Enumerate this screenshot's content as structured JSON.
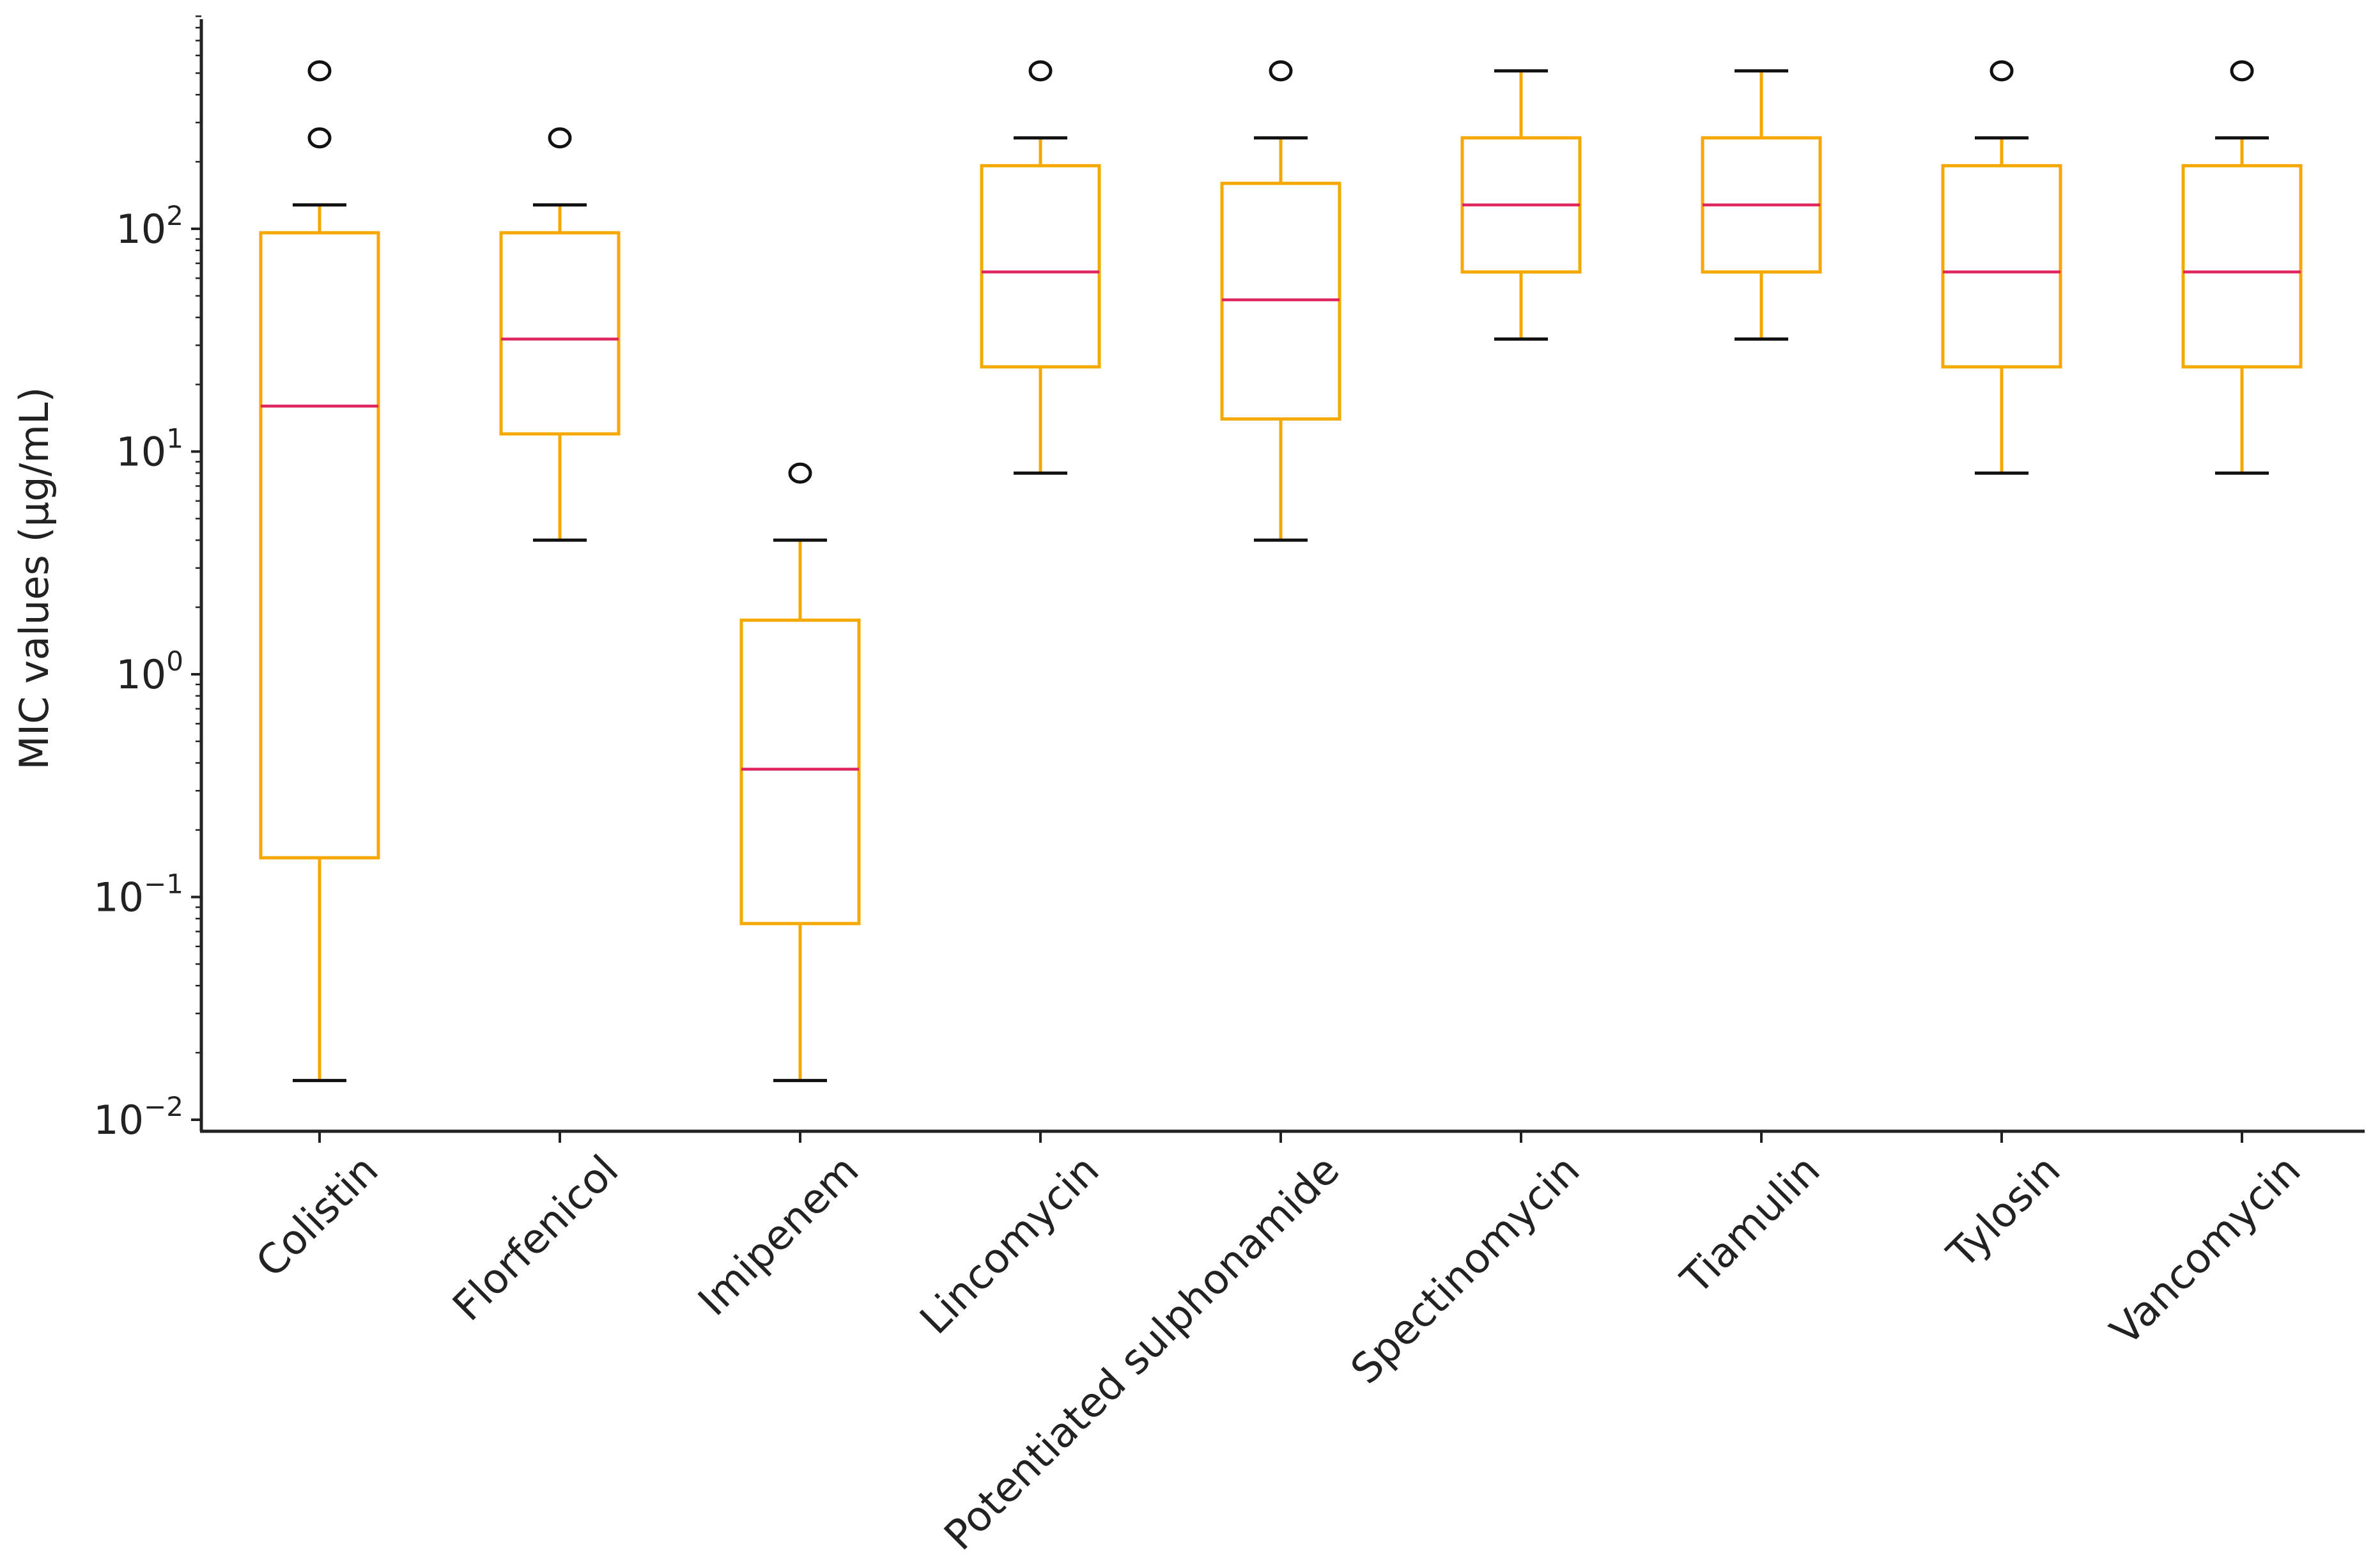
{
  "chart_data": {
    "type": "box",
    "title": "",
    "xlabel": "",
    "ylabel": "MIC values (μg/mL)",
    "yscale": "log",
    "ylim": [
      0.0078,
      900
    ],
    "y_ticks": [
      {
        "value": 100,
        "base": "10",
        "exp": "2"
      },
      {
        "value": 10,
        "base": "10",
        "exp": "1"
      },
      {
        "value": 1,
        "base": "10",
        "exp": "0"
      },
      {
        "value": 0.1,
        "base": "10",
        "exp": "−1"
      },
      {
        "value": 0.01,
        "base": "10",
        "exp": "−2"
      }
    ],
    "colors": {
      "box": "#F5A800",
      "whisker": "#F5A800",
      "cap": "#111111",
      "median": "#E0245E",
      "flier": "#111111",
      "axis": "#222222"
    },
    "series": [
      {
        "name": "Colistin",
        "whislo": 0.015,
        "q1": 0.15,
        "med": 16,
        "q3": 96,
        "whishi": 128,
        "fliers": [
          256,
          512
        ]
      },
      {
        "name": "Florfenicol",
        "whislo": 4,
        "q1": 12,
        "med": 32,
        "q3": 96,
        "whishi": 128,
        "fliers": [
          256
        ]
      },
      {
        "name": "Imipenem",
        "whislo": 0.015,
        "q1": 0.076,
        "med": 0.375,
        "q3": 1.75,
        "whishi": 4,
        "fliers": [
          8
        ]
      },
      {
        "name": "Lincomycin",
        "whislo": 8,
        "q1": 24,
        "med": 64,
        "q3": 192,
        "whishi": 256,
        "fliers": [
          512
        ]
      },
      {
        "name": "Potentiated sulphonamide",
        "whislo": 4,
        "q1": 14,
        "med": 48,
        "q3": 160,
        "whishi": 256,
        "fliers": [
          512
        ]
      },
      {
        "name": "Spectinomycin",
        "whislo": 32,
        "q1": 64,
        "med": 128,
        "q3": 256,
        "whishi": 512,
        "fliers": []
      },
      {
        "name": "Tiamulin",
        "whislo": 32,
        "q1": 64,
        "med": 128,
        "q3": 256,
        "whishi": 512,
        "fliers": []
      },
      {
        "name": "Tylosin",
        "whislo": 8,
        "q1": 24,
        "med": 64,
        "q3": 192,
        "whishi": 256,
        "fliers": [
          512
        ]
      },
      {
        "name": "Vancomycin",
        "whislo": 8,
        "q1": 24,
        "med": 64,
        "q3": 192,
        "whishi": 256,
        "fliers": [
          512
        ]
      }
    ]
  }
}
